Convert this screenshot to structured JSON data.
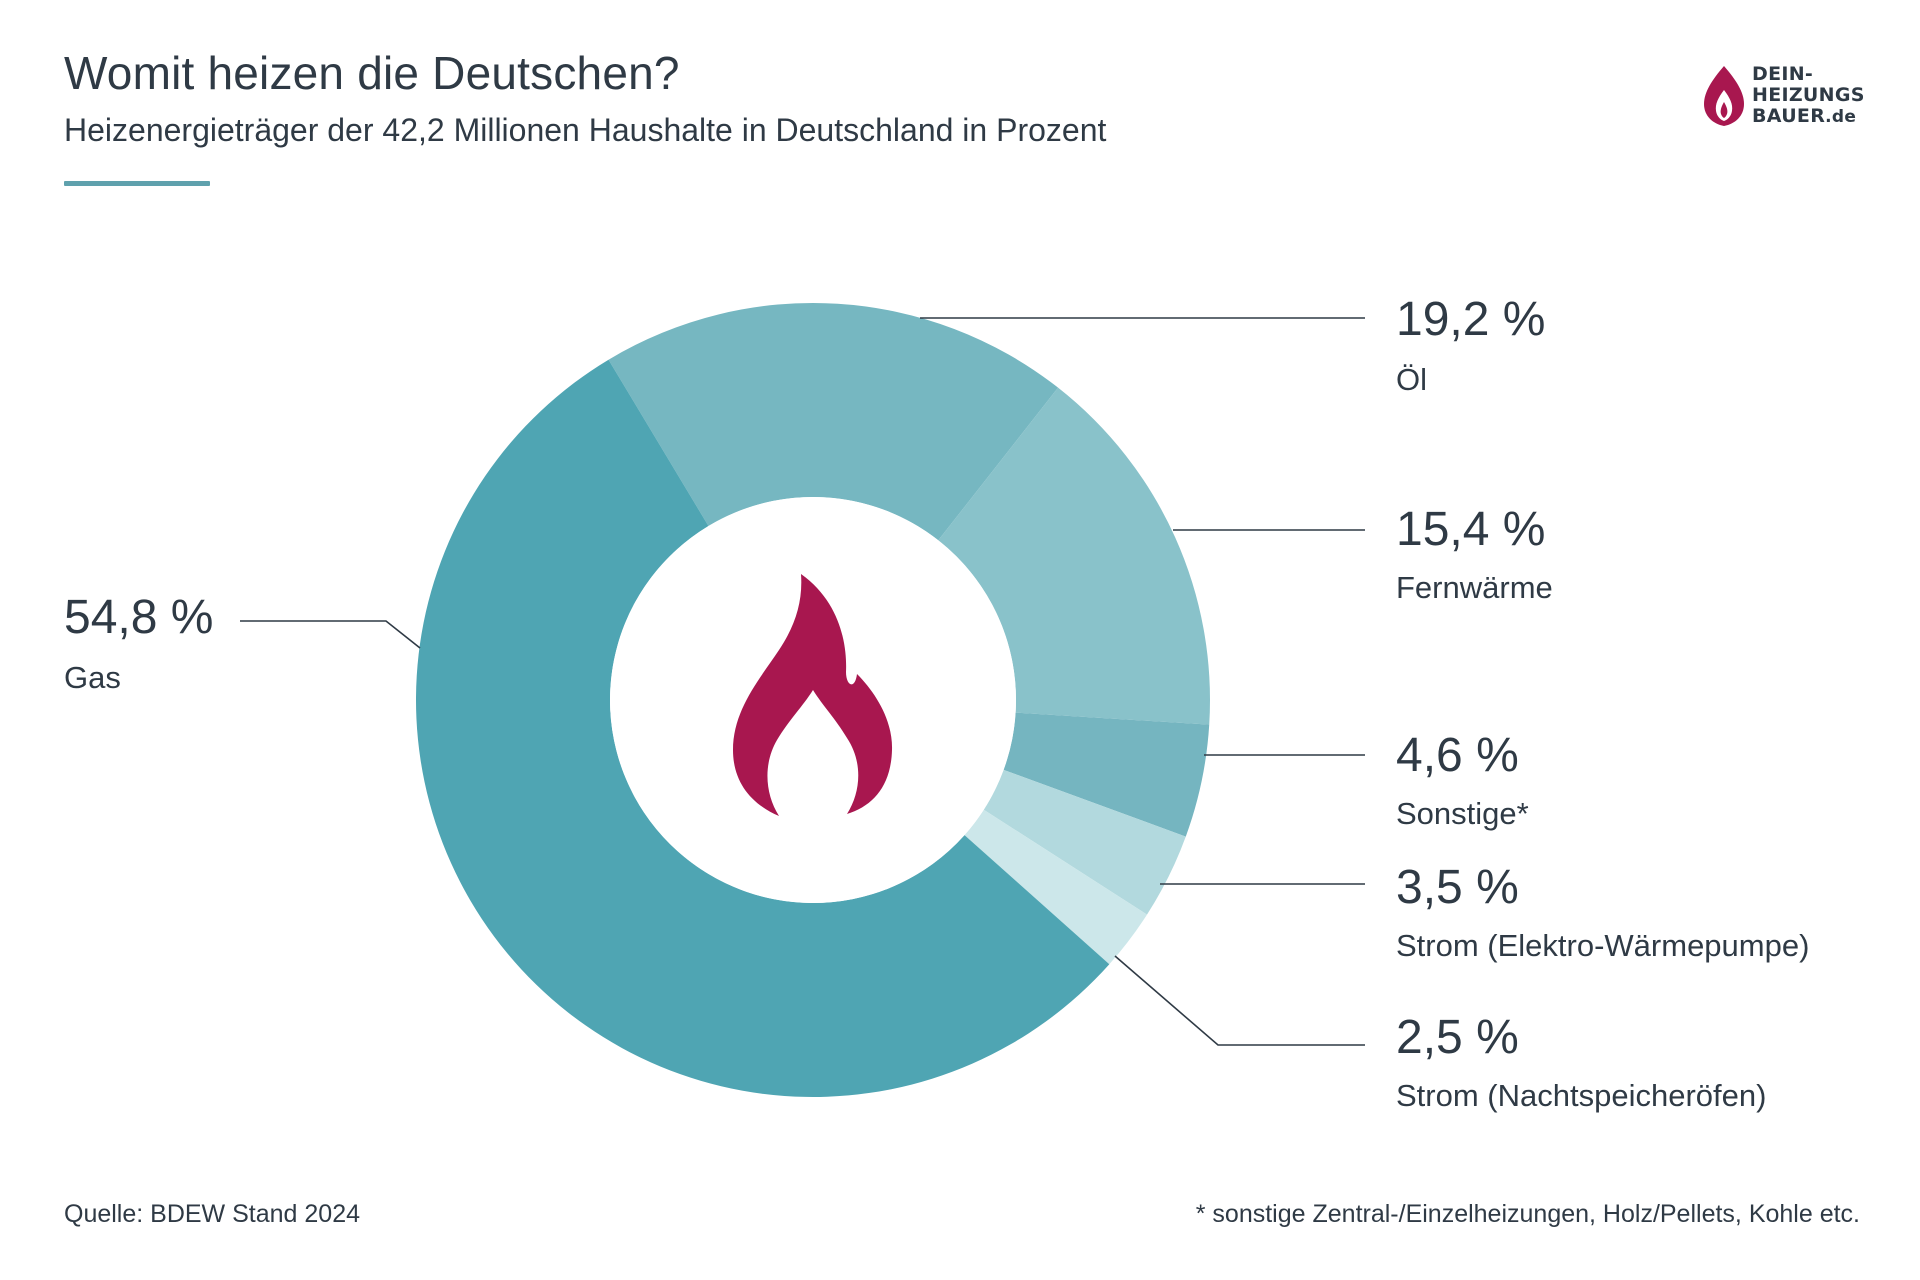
{
  "header": {
    "title": "Womit heizen die Deutschen?",
    "subtitle": "Heizenergieträger der 42,2 Millionen Haushalte in Deutschland in Prozent"
  },
  "logo": {
    "line1": "DEIN-",
    "line2": "HEIZUNGS",
    "line3": "BAUER",
    "tld": ".de"
  },
  "colors": {
    "text": "#2f3a45",
    "accent": "#5fa1ad",
    "flame": "#a8174f"
  },
  "chart_data": {
    "type": "pie",
    "style": "donut",
    "center_icon": "flame-icon",
    "slices": [
      {
        "name": "Gas",
        "value": 54.8,
        "value_label": "54,8 %",
        "color": "#4fa5b3"
      },
      {
        "name": "Öl",
        "value": 19.2,
        "value_label": "19,2 %",
        "color": "#76b7c1"
      },
      {
        "name": "Fernwärme",
        "value": 15.4,
        "value_label": "15,4 %",
        "color": "#89c2ca"
      },
      {
        "name": "Sonstige*",
        "value": 4.6,
        "value_label": "4,6 %",
        "color": "#75b5c0"
      },
      {
        "name": "Strom (Elektro-Wärmepumpe)",
        "value": 3.5,
        "value_label": "3,5 %",
        "color": "#b2d9de"
      },
      {
        "name": "Strom (Nachtspeicheröfen)",
        "value": 2.5,
        "value_label": "2,5 %",
        "color": "#cce7ea"
      }
    ]
  },
  "footer": {
    "source": "Quelle: BDEW Stand 2024",
    "footnote": "* sonstige Zentral-/Einzelheizungen, Holz/Pellets, Kohle etc."
  }
}
